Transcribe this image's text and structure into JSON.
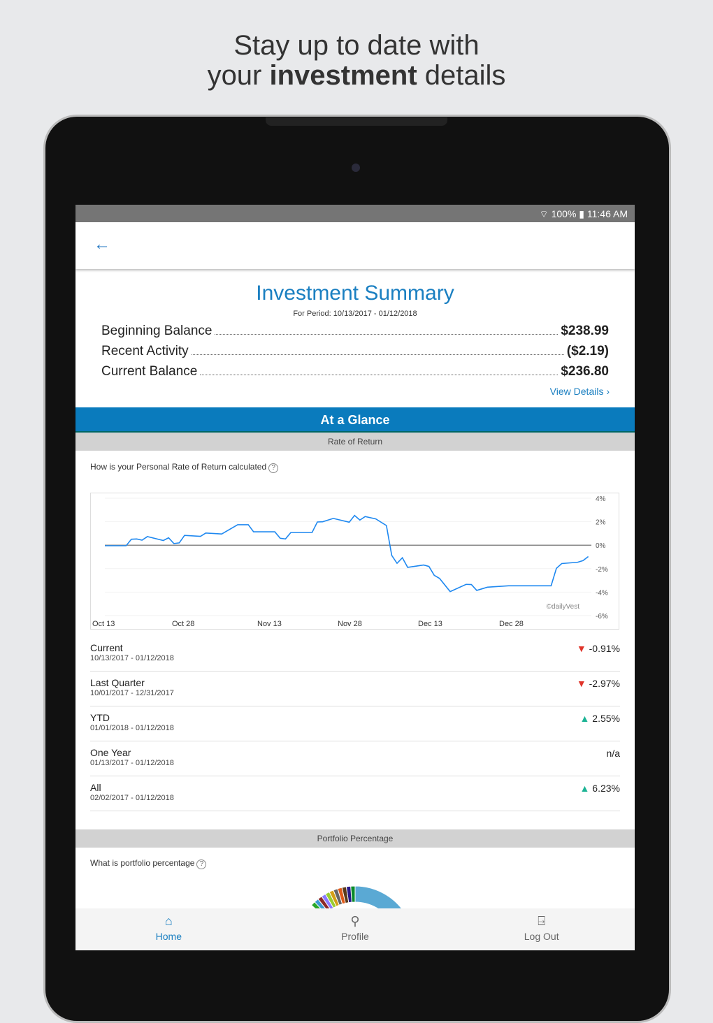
{
  "headline": {
    "line1": "Stay up to date with",
    "line2_pre": "your ",
    "line2_bold": "investment",
    "line2_post": " details"
  },
  "status": {
    "text": "100% ▮ 11:46 AM"
  },
  "summary": {
    "title": "Investment Summary",
    "period": "For Period: 10/13/2017 - 01/12/2018",
    "rows": [
      {
        "label": "Beginning Balance",
        "value": "$238.99"
      },
      {
        "label": "Recent Activity",
        "value": "($2.19)"
      },
      {
        "label": "Current Balance",
        "value": "$236.80"
      }
    ],
    "view_details": "View Details ›"
  },
  "glance": "At a Glance",
  "ror": {
    "section": "Rate of Return",
    "help": "How is your Personal Rate of Return calculated",
    "watermark": "©dailyVest"
  },
  "chart_data": {
    "type": "line",
    "xlabels": [
      "Oct 13",
      "Oct 28",
      "Nov 13",
      "Nov 28",
      "Dec 13",
      "Dec 28"
    ],
    "ylabels": [
      "4%",
      "2%",
      "0%",
      "-2%",
      "-4%",
      "-6%"
    ],
    "ylim": [
      -6,
      4
    ],
    "color": "#1e88f0",
    "points": [
      [
        "2017-10-13",
        0
      ],
      [
        "2017-10-17",
        0
      ],
      [
        "2017-10-18",
        0.55
      ],
      [
        "2017-10-19",
        0.57
      ],
      [
        "2017-10-20",
        0.47
      ],
      [
        "2017-10-21",
        0.77
      ],
      [
        "2017-10-24",
        0.44
      ],
      [
        "2017-10-25",
        0.67
      ],
      [
        "2017-10-26",
        0.18
      ],
      [
        "2017-10-27",
        0.24
      ],
      [
        "2017-10-28",
        0.87
      ],
      [
        "2017-10-31",
        0.79
      ],
      [
        "2017-11-01",
        1.07
      ],
      [
        "2017-11-04",
        0.99
      ],
      [
        "2017-11-07",
        1.77
      ],
      [
        "2017-11-09",
        1.77
      ],
      [
        "2017-11-10",
        1.17
      ],
      [
        "2017-11-14",
        1.17
      ],
      [
        "2017-11-15",
        0.63
      ],
      [
        "2017-11-16",
        0.57
      ],
      [
        "2017-11-17",
        1.11
      ],
      [
        "2017-11-21",
        1.11
      ],
      [
        "2017-11-22",
        2.0
      ],
      [
        "2017-11-23",
        2.02
      ],
      [
        "2017-11-25",
        2.3
      ],
      [
        "2017-11-28",
        1.98
      ],
      [
        "2017-11-29",
        2.55
      ],
      [
        "2017-11-30",
        2.16
      ],
      [
        "2017-12-01",
        2.46
      ],
      [
        "2017-12-03",
        2.26
      ],
      [
        "2017-12-05",
        1.7
      ],
      [
        "2017-12-06",
        -0.81
      ],
      [
        "2017-12-07",
        -1.48
      ],
      [
        "2017-12-08",
        -1.01
      ],
      [
        "2017-12-09",
        -1.82
      ],
      [
        "2017-12-12",
        -1.62
      ],
      [
        "2017-12-13",
        -1.74
      ],
      [
        "2017-12-14",
        -2.49
      ],
      [
        "2017-12-15",
        -2.75
      ],
      [
        "2017-12-17",
        -3.86
      ],
      [
        "2017-12-20",
        -3.25
      ],
      [
        "2017-12-21",
        -3.27
      ],
      [
        "2017-12-22",
        -3.76
      ],
      [
        "2017-12-24",
        -3.49
      ],
      [
        "2017-12-28",
        -3.37
      ],
      [
        "2018-01-05",
        -3.37
      ],
      [
        "2018-01-06",
        -1.9
      ],
      [
        "2018-01-07",
        -1.5
      ],
      [
        "2018-01-10",
        -1.39
      ],
      [
        "2018-01-11",
        -1.25
      ],
      [
        "2018-01-12",
        -0.91
      ]
    ]
  },
  "returns": [
    {
      "name": "Current",
      "dates": "10/13/2017 - 01/12/2018",
      "value": "-0.91%",
      "dir": "down"
    },
    {
      "name": "Last Quarter",
      "dates": "10/01/2017 - 12/31/2017",
      "value": "-2.97%",
      "dir": "down"
    },
    {
      "name": "YTD",
      "dates": "01/01/2018 - 01/12/2018",
      "value": "2.55%",
      "dir": "up"
    },
    {
      "name": "One Year",
      "dates": "01/13/2017 - 01/12/2018",
      "value": "n/a",
      "dir": "none"
    },
    {
      "name": "All",
      "dates": "02/02/2017 - 01/12/2018",
      "value": "6.23%",
      "dir": "up"
    }
  ],
  "portfolio": {
    "section": "Portfolio Percentage",
    "help": "What is portfolio percentage",
    "slice_colors": [
      "#5aa9d4",
      "#0a8a2a",
      "#2a1a8a",
      "#5a3a1a",
      "#e05a1a",
      "#666666",
      "#d4a017",
      "#9acd32",
      "#8a7aff",
      "#8b2a2a",
      "#3a9ad4",
      "#2aa82a"
    ]
  },
  "nav": [
    {
      "label": "Home",
      "icon": "home-icon",
      "active": true
    },
    {
      "label": "Profile",
      "icon": "profile-icon"
    },
    {
      "label": "Log Out",
      "icon": "logout-icon"
    }
  ]
}
